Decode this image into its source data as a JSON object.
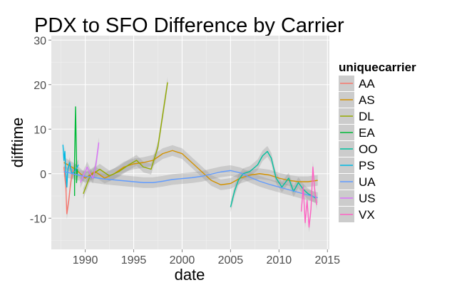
{
  "chart_data": {
    "type": "line",
    "title": "PDX to SFO Difference by Carrier",
    "xlabel": "date",
    "ylabel": "difftime",
    "xlim": [
      1986.5,
      2015.2
    ],
    "ylim": [
      -17,
      31
    ],
    "x_ticks": [
      1990,
      1995,
      2000,
      2005,
      2010,
      2015
    ],
    "y_ticks": [
      -10,
      0,
      10,
      20,
      30
    ],
    "grid": true,
    "legend": {
      "title": "uniquecarrier",
      "position": "right"
    },
    "series": [
      {
        "name": "AA",
        "color": "#F8766D",
        "x": [
          1987.8,
          1988.0,
          1988.1,
          1988.3,
          1988.5,
          1988.7,
          1989.0
        ],
        "y": [
          1.5,
          -3,
          -9,
          -6,
          -2,
          0.5,
          1.0
        ]
      },
      {
        "name": "AS",
        "color": "#D39200",
        "x": [
          1987.8,
          1989,
          1990,
          1991,
          1992,
          1993,
          1994,
          1995,
          1996,
          1997,
          1998,
          1999,
          2000,
          2001,
          2002,
          2003,
          2004,
          2005,
          2006,
          2007,
          2008,
          2009,
          2010,
          2011,
          2012,
          2013,
          2014
        ],
        "y": [
          2.5,
          1.0,
          -1.0,
          0.5,
          -1.0,
          0.0,
          1.5,
          2.2,
          2.5,
          3.0,
          4.5,
          5.2,
          4.5,
          2.5,
          0.5,
          -1.5,
          -2.5,
          -2.2,
          -1.0,
          -0.3,
          0.0,
          -0.3,
          -1.0,
          -1.5,
          -1.8,
          -1.8,
          -1.5
        ]
      },
      {
        "name": "DL",
        "color": "#93AA00",
        "x": [
          1989.8,
          1990.5,
          1991.5,
          1992.5,
          1993.5,
          1994.5,
          1995.3,
          1996.0,
          1996.8,
          1997.5,
          1998.5
        ],
        "y": [
          -4.5,
          -0.5,
          1.0,
          -0.5,
          0.5,
          2.0,
          3.0,
          1.5,
          1.0,
          6.0,
          20.5
        ]
      },
      {
        "name": "EA",
        "color": "#00BA38",
        "x": [
          1988.9,
          1988.9,
          1989.0,
          1989.1,
          1989.1,
          1989.2
        ],
        "y": [
          -5,
          3,
          15,
          3,
          -2,
          1
        ]
      },
      {
        "name": "OO",
        "color": "#00C19F",
        "x": [
          2005.0,
          2005.4,
          2005.8,
          2006.3,
          2007.0,
          2007.8,
          2008.3,
          2008.8,
          2009.2,
          2009.7,
          2010.3,
          2011.0,
          2011.5,
          2012.0,
          2012.5,
          2013.0,
          2013.8
        ],
        "y": [
          -7.5,
          -4.0,
          -1.5,
          0.0,
          0.5,
          2.0,
          4.0,
          5.0,
          3.5,
          -1.0,
          -3.0,
          -1.0,
          -4.0,
          -2.0,
          -3.5,
          -4.5,
          -5.5
        ]
      },
      {
        "name": "PS",
        "color": "#00B9E3",
        "x": [
          1987.7,
          1987.8,
          1987.9,
          1988.0,
          1988.1,
          1988.2,
          1988.4,
          1988.6,
          1988.9,
          1989.3
        ],
        "y": [
          6.5,
          3,
          5,
          0,
          -3,
          1,
          2.5,
          0,
          0.5,
          2
        ]
      },
      {
        "name": "UA",
        "color": "#619CFF",
        "x": [
          1987.8,
          1989,
          1990,
          1991,
          1992,
          1993,
          1994,
          1995,
          1996,
          1997,
          1998,
          1999,
          2000,
          2001,
          2002,
          2003,
          2004,
          2005,
          2006,
          2007,
          2008,
          2009,
          2010,
          2011,
          2012,
          2013,
          2014
        ],
        "y": [
          0.5,
          -0.2,
          -0.6,
          -0.9,
          -1.2,
          -1.4,
          -1.6,
          -1.8,
          -2.0,
          -2.0,
          -1.7,
          -1.3,
          -1.1,
          -0.9,
          -0.6,
          -0.1,
          0.4,
          0.7,
          0.2,
          -0.8,
          -1.7,
          -2.4,
          -3.0,
          -3.6,
          -4.2,
          -4.8,
          -5.4
        ]
      },
      {
        "name": "US",
        "color": "#DB72FB",
        "x": [
          1989.5,
          1989.9,
          1990.2,
          1990.5,
          1990.8,
          1991.1,
          1991.4
        ],
        "y": [
          -2,
          0,
          1.5,
          0,
          -1,
          2,
          7
        ]
      },
      {
        "name": "VX",
        "color": "#FF61C3",
        "x": [
          2012.3,
          2012.5,
          2012.7,
          2012.9,
          2013.1,
          2013.3,
          2013.5,
          2013.7,
          2013.9
        ],
        "y": [
          -8.5,
          -3,
          -11,
          -6,
          -12,
          -8,
          1.5,
          -4,
          -7
        ]
      }
    ]
  }
}
